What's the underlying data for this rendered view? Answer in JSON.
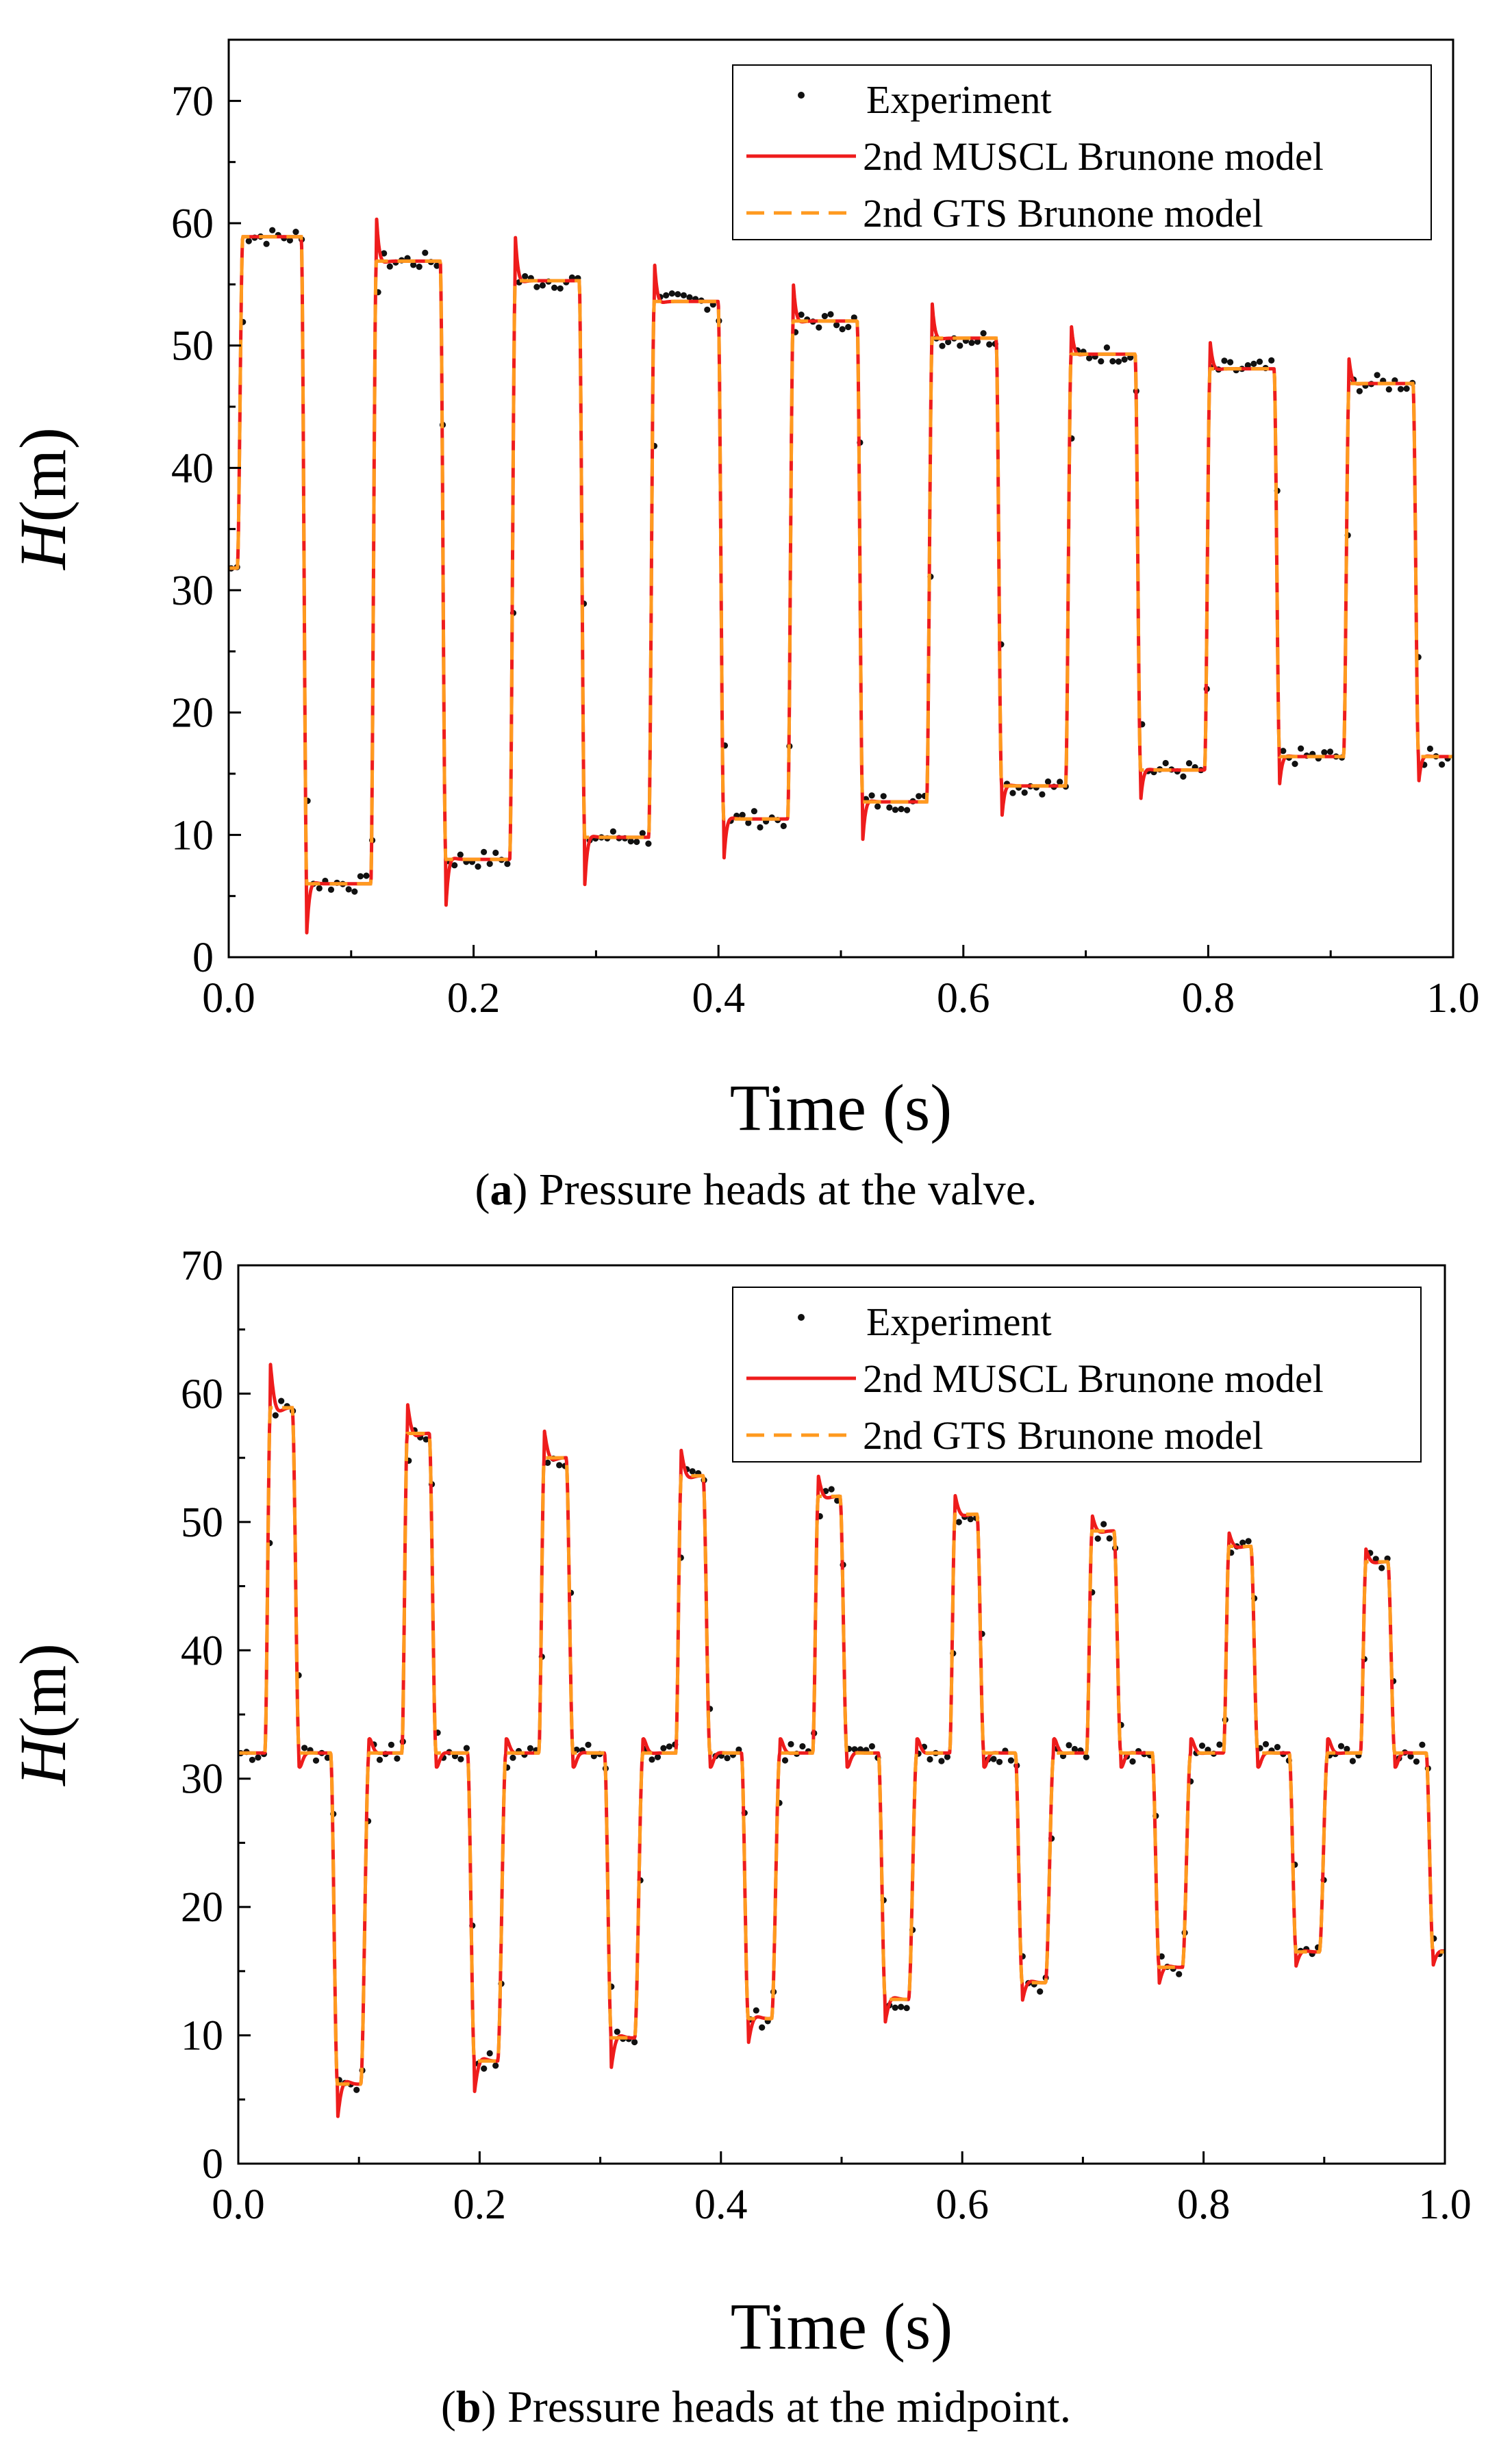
{
  "captions": {
    "a": {
      "label": "a",
      "text": " Pressure heads at the valve.",
      "open": "(",
      "close": ")"
    },
    "b": {
      "label": "b",
      "text": " Pressure heads at the midpoint.",
      "open": "(",
      "close": ")"
    }
  },
  "colors": {
    "experiment": "#111111",
    "muscl": "#ee1c1c",
    "gts": "#ff9a1f",
    "axis": "#000000"
  },
  "chart_data": [
    {
      "id": "a",
      "type": "line",
      "title": "",
      "xlabel": "Time (s)",
      "ylabel_italic": "H",
      "ylabel_rest": "(m)",
      "xlim": [
        0.0,
        1.0
      ],
      "ylim": [
        0,
        75
      ],
      "xticks": [
        0.0,
        0.2,
        0.4,
        0.6,
        0.8,
        1.0
      ],
      "xtick_labels": [
        "0.0",
        "0.2",
        "0.4",
        "0.6",
        "0.8",
        "1.0"
      ],
      "yticks": [
        0,
        10,
        20,
        30,
        40,
        50,
        60,
        70
      ],
      "ytick_labels": [
        "0",
        "10",
        "20",
        "30",
        "40",
        "50",
        "60",
        "70"
      ],
      "legend_position": "top-right",
      "series": [
        {
          "name": "Experiment",
          "style": "dots"
        },
        {
          "name": "2nd MUSCL Brunone model",
          "style": "solid"
        },
        {
          "name": "2nd GTS Brunone model",
          "style": "dashed"
        }
      ],
      "pattern": {
        "kind": "square",
        "start_value": 31.8,
        "period": 0.1135,
        "first_rise": 0.007,
        "high_plateau": [
          58.9,
          56.9,
          55.3,
          53.6,
          52.0,
          50.6,
          49.3,
          48.1,
          46.9
        ],
        "low_plateau": [
          6.0,
          8.0,
          9.8,
          11.3,
          12.7,
          14.0,
          15.3,
          16.4
        ],
        "muscl_overshoot": [
          0,
          4.0,
          3.8,
          3.6,
          3.3,
          2.9,
          2.6,
          2.3,
          2.0
        ],
        "muscl_undershoot": [
          4.0,
          4.2,
          4.0,
          3.7,
          3.3,
          2.9,
          2.6,
          2.3
        ],
        "experiment_high_offset": [
          -0.6,
          -0.8,
          -1.0,
          0.8,
          1.3,
          1.5,
          1.6,
          1.7,
          1.8
        ],
        "experiment_low_offset": [
          1.3,
          1.7,
          1.2,
          0.0,
          -0.5,
          -0.9,
          -1.0,
          -1.2
        ]
      }
    },
    {
      "id": "b",
      "type": "line",
      "title": "",
      "xlabel": "Time (s)",
      "ylabel_italic": "H",
      "ylabel_rest": "(m)",
      "xlim": [
        0.0,
        1.0
      ],
      "ylim": [
        0,
        70
      ],
      "xticks": [
        0.0,
        0.2,
        0.4,
        0.6,
        0.8,
        1.0
      ],
      "xtick_labels": [
        "0.0",
        "0.2",
        "0.4",
        "0.6",
        "0.8",
        "1.0"
      ],
      "yticks": [
        0,
        10,
        20,
        30,
        40,
        50,
        60,
        70
      ],
      "ytick_labels": [
        "0",
        "10",
        "20",
        "30",
        "40",
        "50",
        "60",
        "70"
      ],
      "legend_position": "top-right",
      "series": [
        {
          "name": "Experiment",
          "style": "dots"
        },
        {
          "name": "2nd MUSCL Brunone model",
          "style": "solid"
        },
        {
          "name": "2nd GTS Brunone model",
          "style": "dashed"
        }
      ],
      "pattern": {
        "kind": "stepped",
        "base": 32.0,
        "period": 0.1135,
        "peaks": [
          58.9,
          56.9,
          55.0,
          53.6,
          52.0,
          50.6,
          49.3,
          48.1,
          46.9
        ],
        "troughs": [
          6.2,
          8.0,
          9.8,
          11.3,
          12.8,
          14.1,
          15.3,
          16.5
        ],
        "muscl_peak_overshoot": [
          3.5,
          2.5,
          2.2,
          2.0,
          1.7,
          1.5,
          1.3,
          1.1,
          1.0
        ],
        "muscl_trough_undershoot": [
          2.8,
          2.5,
          2.3,
          2.0,
          1.8,
          1.5,
          1.3,
          1.1
        ]
      }
    }
  ]
}
